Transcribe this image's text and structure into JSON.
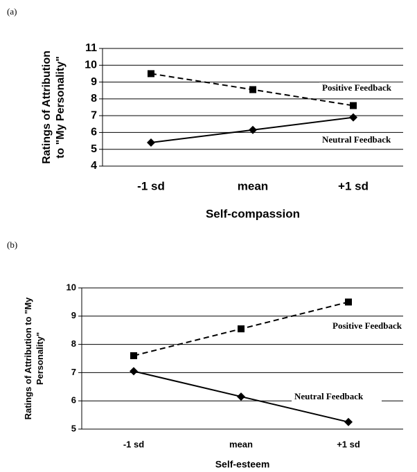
{
  "chart_data": [
    {
      "type": "line",
      "panel_label": "(a)",
      "ylabel": [
        "Ratings of Attribution",
        "to \"My Personality\""
      ],
      "xlabel": "Self-compassion",
      "categories": [
        "-1 sd",
        "mean",
        "+1 sd"
      ],
      "ylim": [
        4,
        11
      ],
      "yticks": [
        4,
        5,
        6,
        7,
        8,
        9,
        10,
        11
      ],
      "grid": true,
      "series": [
        {
          "name": "Positive Feedback",
          "color": "#000000",
          "dashed": true,
          "marker": "square",
          "values": [
            9.5,
            8.55,
            7.6
          ]
        },
        {
          "name": "Neutral Feedback",
          "color": "#000000",
          "dashed": false,
          "marker": "diamond",
          "values": [
            5.4,
            6.15,
            6.9
          ]
        }
      ]
    },
    {
      "type": "line",
      "panel_label": "(b)",
      "ylabel": [
        "Ratings of Attribution to \"My",
        "Personality\""
      ],
      "xlabel": "Self-esteem",
      "categories": [
        "-1 sd",
        "mean",
        "+1 sd"
      ],
      "ylim": [
        5,
        10
      ],
      "yticks": [
        5,
        6,
        7,
        8,
        9,
        10
      ],
      "grid": true,
      "series": [
        {
          "name": "Positive Feedback",
          "color": "#000000",
          "dashed": true,
          "marker": "square",
          "values": [
            7.6,
            8.55,
            9.5
          ]
        },
        {
          "name": "Neutral Feedback",
          "color": "#000000",
          "dashed": false,
          "marker": "diamond",
          "values": [
            7.05,
            6.15,
            5.25
          ]
        }
      ]
    }
  ]
}
